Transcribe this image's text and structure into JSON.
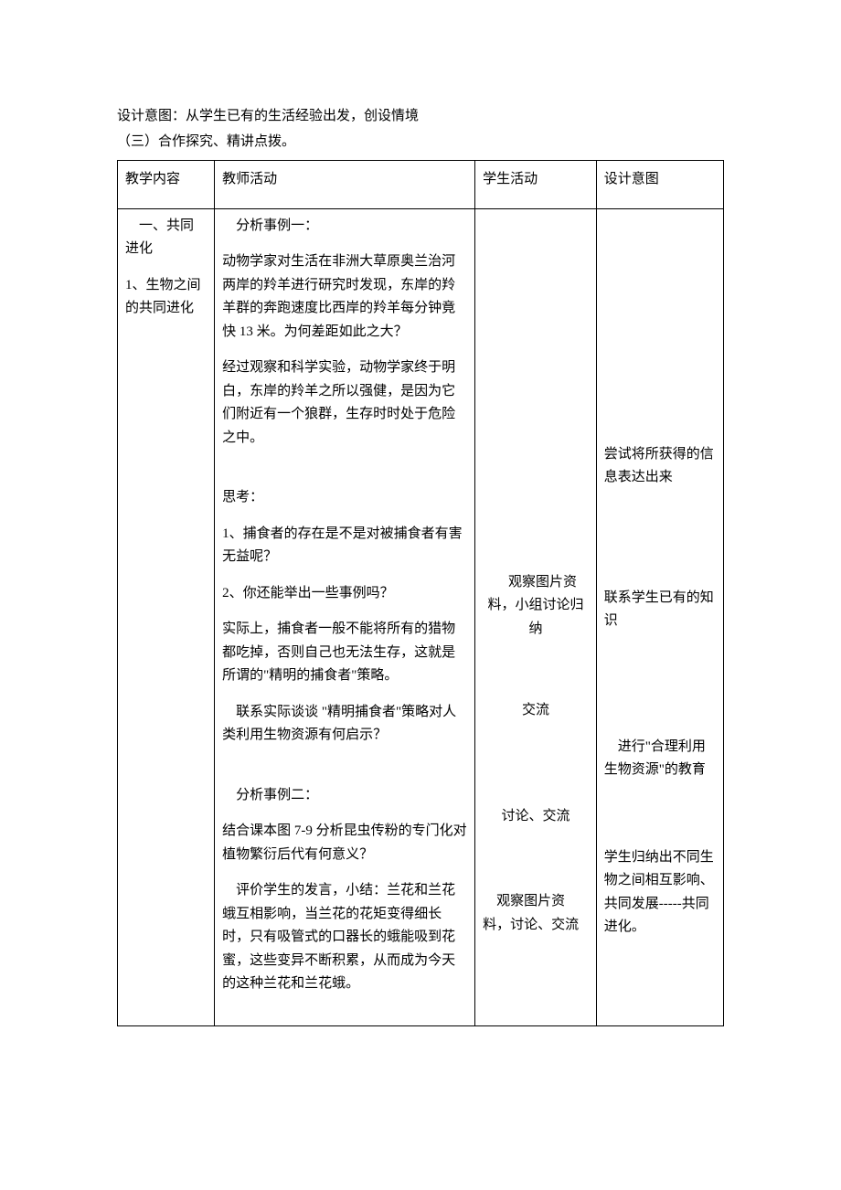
{
  "intro": "设计意图：从学生已有的生活经验出发，创设情境",
  "sectionTitle": "（三）合作探究、精讲点拨。",
  "headers": {
    "c1": "教学内容",
    "c2": "教师活动",
    "c3": "学生活动",
    "c4": "设计意图"
  },
  "col1": {
    "p1": "　一、共同进化",
    "p2": "1、生物之间的共同进化"
  },
  "col2": {
    "p1": "　分析事例一：",
    "p2": "动物学家对生活在非洲大草原奥兰治河两岸的羚羊进行研究时发现，东岸的羚羊群的奔跑速度比西岸的羚羊每分钟竟快 13 米。为何差距如此之大？",
    "p3": "经过观察和科学实验，动物学家终于明白，东岸的羚羊之所以强健，是因为它们附近有一个狼群，生存时时处于危险之中。",
    "p4": "思考：",
    "p5": "1、捕食者的存在是不是对被捕食者有害无益呢？",
    "p6": "2、你还能举出一些事例吗？",
    "p7": "实际上，捕食者一般不能将所有的猎物都吃掉，否则自己也无法生存，这就是所谓的\"精明的捕食者\"策略。",
    "p8": "　联系实际谈谈 \"精明捕食者\"策略对人类利用生物资源有何启示？",
    "p9": "　分析事例二：",
    "p10": "结合课本图 7-9 分析昆虫传粉的专门化对植物繁衍后代有何意义？",
    "p11": "　评价学生的发言，小结：兰花和兰花蛾互相影响，当兰花的花矩变得细长时，只有吸管式的口器长的蛾能吸到花蜜，这些变异不断积累，从而成为今天的这种兰花和兰花蛾。"
  },
  "col3": {
    "b1": "　观察图片资料，小组讨论归纳",
    "b2": "交流",
    "b3": "讨论、交流",
    "b4": "　观察图片资料，讨论、交流"
  },
  "col4": {
    "b1": "尝试将所获得的信息表达出来",
    "b2": "联系学生已有的知识",
    "b3": "　进行\"合理利用生物资源\"的教育",
    "b4": "学生归纳出不同生物之间相互影响、共同发展-----共同进化。"
  },
  "style": {
    "background": "#ffffff",
    "text_color": "#000000",
    "border_color": "#000000",
    "font_family": "SimSun",
    "base_fontsize": 15
  }
}
